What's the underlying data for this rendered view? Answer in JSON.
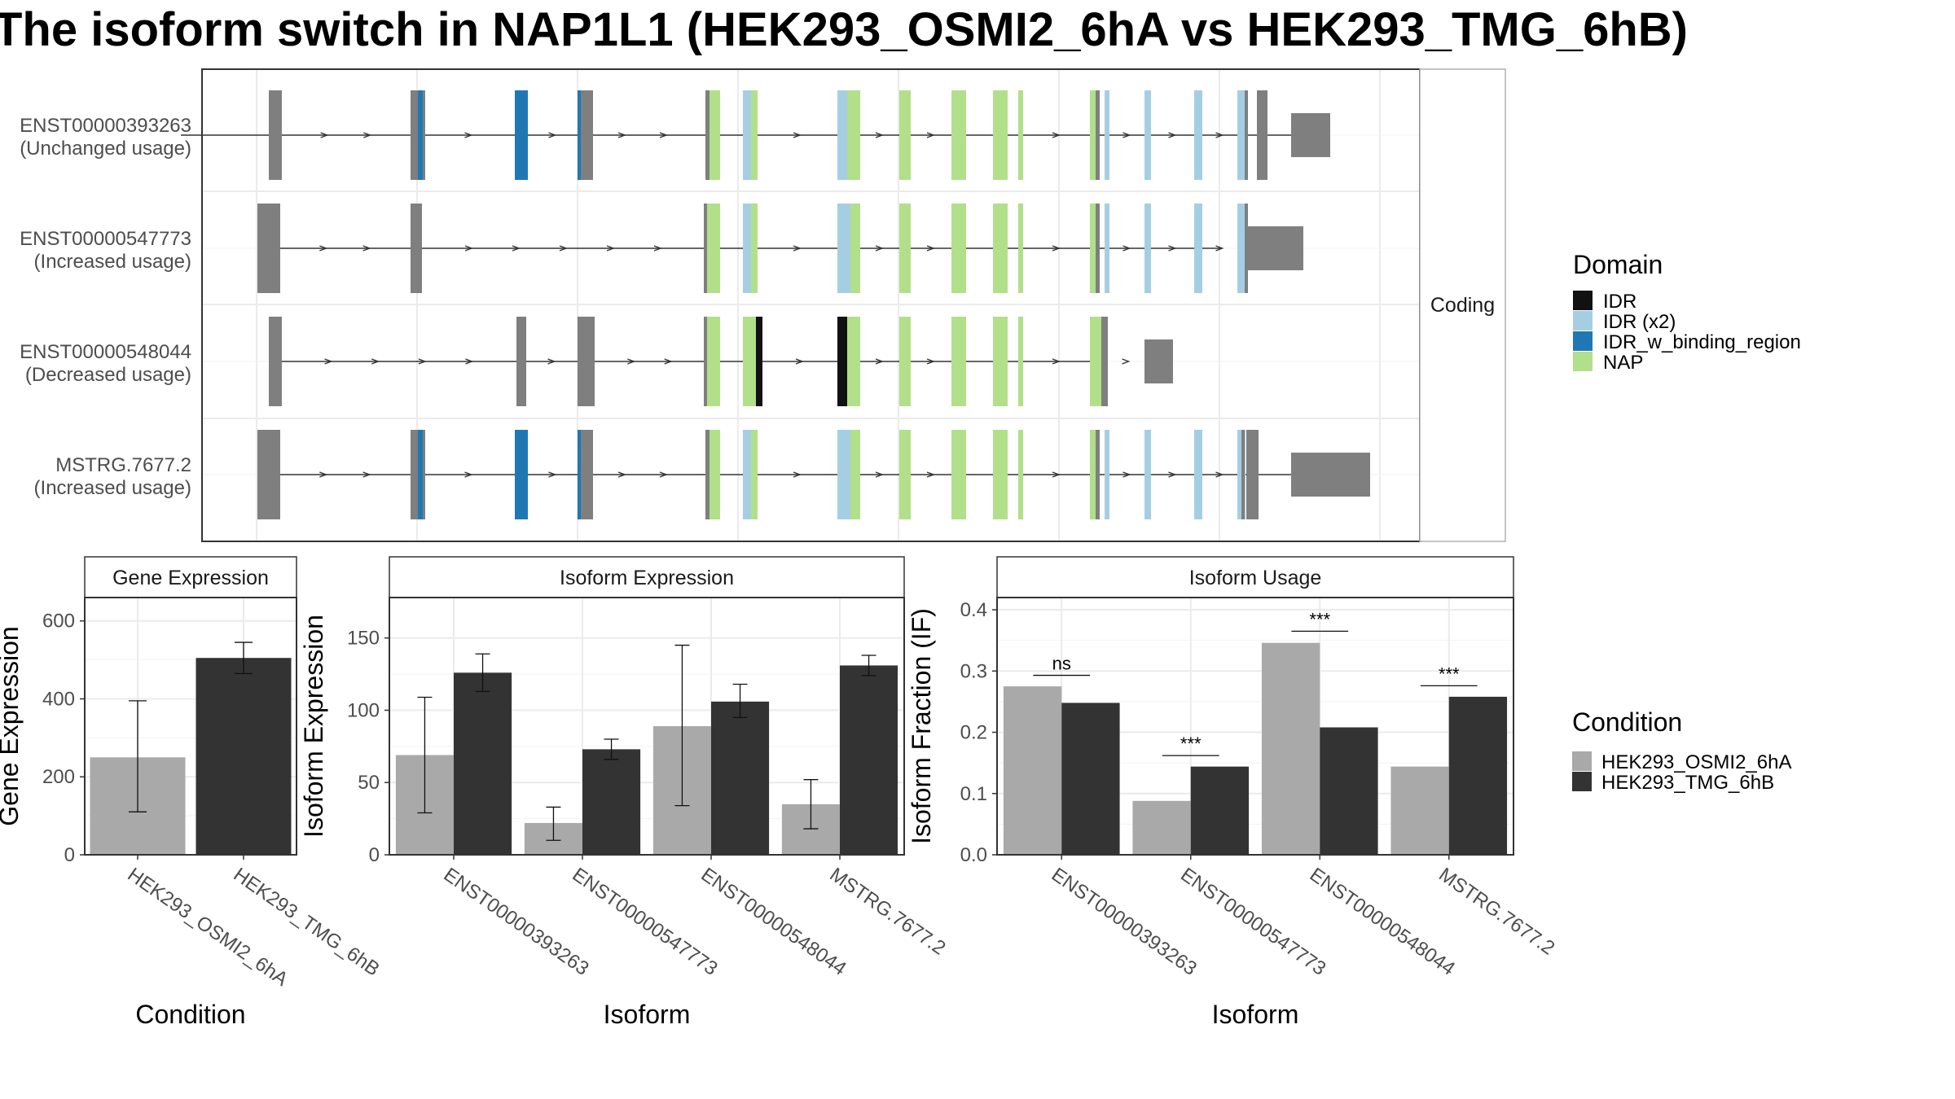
{
  "title": "The isoform switch in NAP1L1 (HEK293_OSMI2_6hA vs HEK293_TMG_6hB)",
  "colors": {
    "intron": "#333333",
    "utr_exon": "#7f7f7f",
    "IDR": "#111111",
    "IDR (x2)": "#a6cee3",
    "IDR_w_binding_region": "#1f78b4",
    "NAP": "#b2df8a",
    "cond_A": "#a9a9a9",
    "cond_B": "#333333"
  },
  "structure_panel": {
    "strip_label": "Coding",
    "transcripts": [
      {
        "id": "ENST00000393263",
        "usage": "(Unchanged usage)",
        "span": [
          222,
          1622
        ],
        "utr_exons": [
          [
            330,
            346
          ],
          [
            504,
            522
          ],
          [
            709,
            728
          ],
          [
            1543,
            1556
          ],
          [
            1585,
            1633
          ]
        ],
        "domain_exons": [
          {
            "domain": "IDR_w_binding_region",
            "range": [
              513,
              519
            ]
          },
          {
            "domain": "IDR_w_binding_region",
            "range": [
              632,
              648
            ]
          },
          {
            "domain": "IDR_w_binding_region",
            "range": [
              709,
              713
            ]
          },
          {
            "domain": "NAP",
            "range": [
              866,
              884
            ]
          },
          {
            "domain": "IDR (x2)",
            "range": [
              912,
              922
            ]
          },
          {
            "domain": "NAP",
            "range": [
              922,
              930
            ]
          },
          {
            "domain": "IDR (x2)",
            "range": [
              1028,
              1040
            ]
          },
          {
            "domain": "NAP",
            "range": [
              1040,
              1056
            ]
          },
          {
            "domain": "NAP",
            "range": [
              1104,
              1118
            ]
          },
          {
            "domain": "NAP",
            "range": [
              1168,
              1186
            ]
          },
          {
            "domain": "NAP",
            "range": [
              1219,
              1237
            ]
          },
          {
            "domain": "NAP",
            "range": [
              1250,
              1256
            ]
          },
          {
            "domain": "NAP",
            "range": [
              1338,
              1350
            ]
          },
          {
            "domain": "IDR (x2)",
            "range": [
              1356,
              1362
            ]
          },
          {
            "domain": "IDR (x2)",
            "range": [
              1405,
              1413
            ]
          },
          {
            "domain": "IDR (x2)",
            "range": [
              1466,
              1476
            ]
          },
          {
            "domain": "IDR (x2)",
            "range": [
              1519,
              1529
            ]
          }
        ],
        "grey_slivers": [
          [
            866,
            871
          ],
          [
            1345,
            1350
          ],
          [
            1528,
            1532
          ]
        ]
      },
      {
        "id": "ENST00000547773",
        "usage": "(Increased usage)",
        "span": [
          330,
          1500
        ],
        "utr_exons": [
          [
            316,
            344
          ],
          [
            504,
            518
          ],
          [
            1530,
            1600
          ]
        ],
        "domain_exons": [
          {
            "domain": "NAP",
            "range": [
              866,
              884
            ]
          },
          {
            "domain": "IDR (x2)",
            "range": [
              912,
              922
            ]
          },
          {
            "domain": "NAP",
            "range": [
              922,
              930
            ]
          },
          {
            "domain": "IDR (x2)",
            "range": [
              1028,
              1044
            ]
          },
          {
            "domain": "NAP",
            "range": [
              1044,
              1056
            ]
          },
          {
            "domain": "NAP",
            "range": [
              1104,
              1118
            ]
          },
          {
            "domain": "NAP",
            "range": [
              1168,
              1186
            ]
          },
          {
            "domain": "NAP",
            "range": [
              1219,
              1237
            ]
          },
          {
            "domain": "NAP",
            "range": [
              1250,
              1256
            ]
          },
          {
            "domain": "NAP",
            "range": [
              1338,
              1350
            ]
          },
          {
            "domain": "IDR (x2)",
            "range": [
              1356,
              1362
            ]
          },
          {
            "domain": "IDR (x2)",
            "range": [
              1405,
              1413
            ]
          },
          {
            "domain": "IDR (x2)",
            "range": [
              1466,
              1476
            ]
          },
          {
            "domain": "IDR (x2)",
            "range": [
              1519,
              1529
            ]
          }
        ],
        "grey_slivers": [
          [
            864,
            868
          ],
          [
            1345,
            1350
          ],
          [
            1528,
            1532
          ]
        ]
      },
      {
        "id": "ENST00000548044",
        "usage": "(Decreased usage)",
        "span": [
          336,
          1350
        ],
        "utr_exons": [
          [
            330,
            346
          ],
          [
            634,
            646
          ],
          [
            709,
            730
          ],
          [
            1345,
            1360
          ],
          [
            1405,
            1440
          ]
        ],
        "domain_exons": [
          {
            "domain": "NAP",
            "range": [
              866,
              884
            ]
          },
          {
            "domain": "NAP",
            "range": [
              912,
              928
            ]
          },
          {
            "domain": "IDR",
            "range": [
              928,
              936
            ]
          },
          {
            "domain": "IDR",
            "range": [
              1028,
              1040
            ]
          },
          {
            "domain": "NAP",
            "range": [
              1040,
              1056
            ]
          },
          {
            "domain": "NAP",
            "range": [
              1104,
              1118
            ]
          },
          {
            "domain": "NAP",
            "range": [
              1168,
              1186
            ]
          },
          {
            "domain": "NAP",
            "range": [
              1219,
              1237
            ]
          },
          {
            "domain": "NAP",
            "range": [
              1250,
              1256
            ]
          },
          {
            "domain": "NAP",
            "range": [
              1338,
              1352
            ]
          }
        ],
        "grey_slivers": [
          [
            864,
            868
          ]
        ]
      },
      {
        "id": "MSTRG.7677.2",
        "usage": "(Increased usage)",
        "span": [
          330,
          1622
        ],
        "utr_exons": [
          [
            316,
            344
          ],
          [
            504,
            522
          ],
          [
            709,
            728
          ],
          [
            1530,
            1545
          ],
          [
            1585,
            1682
          ]
        ],
        "domain_exons": [
          {
            "domain": "IDR_w_binding_region",
            "range": [
              513,
              519
            ]
          },
          {
            "domain": "IDR_w_binding_region",
            "range": [
              632,
              648
            ]
          },
          {
            "domain": "IDR_w_binding_region",
            "range": [
              709,
              713
            ]
          },
          {
            "domain": "NAP",
            "range": [
              866,
              884
            ]
          },
          {
            "domain": "IDR (x2)",
            "range": [
              912,
              922
            ]
          },
          {
            "domain": "NAP",
            "range": [
              922,
              930
            ]
          },
          {
            "domain": "IDR (x2)",
            "range": [
              1028,
              1044
            ]
          },
          {
            "domain": "NAP",
            "range": [
              1044,
              1056
            ]
          },
          {
            "domain": "NAP",
            "range": [
              1104,
              1118
            ]
          },
          {
            "domain": "NAP",
            "range": [
              1168,
              1186
            ]
          },
          {
            "domain": "NAP",
            "range": [
              1219,
              1237
            ]
          },
          {
            "domain": "NAP",
            "range": [
              1250,
              1256
            ]
          },
          {
            "domain": "NAP",
            "range": [
              1338,
              1350
            ]
          },
          {
            "domain": "IDR (x2)",
            "range": [
              1356,
              1362
            ]
          },
          {
            "domain": "IDR (x2)",
            "range": [
              1405,
              1413
            ]
          },
          {
            "domain": "IDR (x2)",
            "range": [
              1466,
              1476
            ]
          },
          {
            "domain": "IDR (x2)",
            "range": [
              1519,
              1529
            ]
          }
        ],
        "grey_slivers": [
          [
            866,
            871
          ],
          [
            1345,
            1350
          ],
          [
            1524,
            1528
          ]
        ]
      }
    ]
  },
  "domain_legend": {
    "title": "Domain",
    "items": [
      "IDR",
      "IDR (x2)",
      "IDR_w_binding_region",
      "NAP"
    ]
  },
  "condition_legend": {
    "title": "Condition",
    "items": [
      "HEK293_OSMI2_6hA",
      "HEK293_TMG_6hB"
    ]
  },
  "chart_data": [
    {
      "type": "bar",
      "strip": "Gene Expression",
      "xlabel": "Condition",
      "ylabel": "Gene Expression",
      "categories": [
        "HEK293_OSMI2_6hA",
        "HEK293_TMG_6hB"
      ],
      "values": [
        250,
        505
      ],
      "errors": [
        [
          110,
          395
        ],
        [
          465,
          545
        ]
      ],
      "ylim": [
        0,
        660
      ],
      "yticks": [
        0,
        200,
        400,
        600
      ]
    },
    {
      "type": "bar",
      "strip": "Isoform Expression",
      "xlabel": "Isoform",
      "ylabel": "Isoform Expression",
      "categories": [
        "ENST00000393263",
        "ENST00000547773",
        "ENST00000548044",
        "MSTRG.7677.2"
      ],
      "series": [
        {
          "name": "HEK293_OSMI2_6hA",
          "values": [
            69,
            22,
            89,
            35
          ],
          "errors": [
            [
              29,
              109
            ],
            [
              10,
              33
            ],
            [
              34,
              145
            ],
            [
              18,
              52
            ]
          ]
        },
        {
          "name": "HEK293_TMG_6hB",
          "values": [
            126,
            73,
            106,
            131
          ],
          "errors": [
            [
              113,
              139
            ],
            [
              66,
              80
            ],
            [
              95,
              118
            ],
            [
              124,
              138
            ]
          ]
        }
      ],
      "ylim": [
        0,
        178
      ],
      "yticks": [
        0,
        50,
        100,
        150
      ]
    },
    {
      "type": "bar",
      "strip": "Isoform Usage",
      "xlabel": "Isoform",
      "ylabel": "Isoform Fraction (IF)",
      "categories": [
        "ENST00000393263",
        "ENST00000547773",
        "ENST00000548044",
        "MSTRG.7677.2"
      ],
      "series": [
        {
          "name": "HEK293_OSMI2_6hA",
          "values": [
            0.275,
            0.088,
            0.346,
            0.144
          ]
        },
        {
          "name": "HEK293_TMG_6hB",
          "values": [
            0.248,
            0.144,
            0.208,
            0.258
          ]
        }
      ],
      "significance": [
        "ns",
        "***",
        "***",
        "***"
      ],
      "sig_y": [
        0.293,
        0.162,
        0.365,
        0.276
      ],
      "ylim": [
        0,
        0.42
      ],
      "yticks": [
        0.0,
        0.1,
        0.2,
        0.3,
        0.4
      ],
      "ytick_labels": [
        "0.0",
        "0.1",
        "0.2",
        "0.3",
        "0.4"
      ]
    }
  ]
}
